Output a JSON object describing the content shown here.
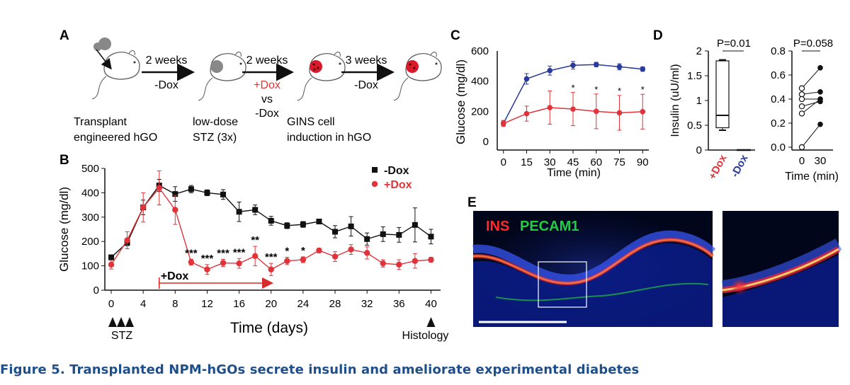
{
  "panels": {
    "A": "A",
    "B": "B",
    "C": "C",
    "D": "D",
    "E": "E"
  },
  "panelA": {
    "steps": [
      {
        "arrow_top": "2 weeks",
        "arrow_bottom": "-Dox"
      },
      {
        "arrow_top": "2 weeks",
        "arrow_mid": "+Dox",
        "arrow_vs": "vs",
        "arrow_bottom": "-Dox"
      },
      {
        "arrow_top": "3 weeks",
        "arrow_bottom": "-Dox"
      }
    ],
    "labels": [
      [
        "Transplant",
        "engineered hGO"
      ],
      [
        "low-dose",
        "STZ (3x)"
      ],
      [
        "GINS cell",
        "induction in hGO"
      ]
    ]
  },
  "colors": {
    "red": "#e0343a",
    "blue": "#2a3a9c",
    "black": "#111111",
    "caption": "#1f4f8a",
    "arrow_red": "#d62c2c"
  },
  "chart_data": [
    {
      "id": "B",
      "type": "line",
      "title": "",
      "xlabel": "Time (days)",
      "ylabel": "Glucose (mg/dl)",
      "xlim": [
        -1,
        41
      ],
      "ylim": [
        0,
        500
      ],
      "xticks": [
        0,
        4,
        8,
        12,
        16,
        20,
        24,
        28,
        32,
        36,
        40
      ],
      "yticks": [
        0,
        100,
        200,
        300,
        400,
        500
      ],
      "series": [
        {
          "name": "-Dox",
          "color": "#111111",
          "marker": "square",
          "x": [
            0,
            2,
            4,
            6,
            8,
            10,
            12,
            14,
            16,
            18,
            20,
            22,
            24,
            26,
            28,
            30,
            32,
            34,
            36,
            38,
            40
          ],
          "y": [
            135,
            195,
            340,
            430,
            395,
            415,
            400,
            393,
            322,
            330,
            285,
            265,
            270,
            282,
            240,
            262,
            210,
            230,
            227,
            268,
            220
          ],
          "err": [
            8,
            12,
            30,
            25,
            30,
            15,
            12,
            20,
            40,
            20,
            18,
            12,
            12,
            10,
            25,
            40,
            25,
            30,
            30,
            70,
            30
          ]
        },
        {
          "name": "+Dox",
          "color": "#e0343a",
          "marker": "circle",
          "x": [
            0,
            2,
            4,
            6,
            8,
            10,
            12,
            14,
            16,
            18,
            20,
            22,
            24,
            26,
            28,
            30,
            32,
            34,
            36,
            38,
            40
          ],
          "y": [
            105,
            205,
            340,
            420,
            330,
            115,
            85,
            112,
            110,
            140,
            85,
            120,
            125,
            163,
            138,
            167,
            153,
            110,
            105,
            120,
            125
          ],
          "err": [
            18,
            35,
            60,
            70,
            60,
            12,
            20,
            15,
            20,
            40,
            25,
            15,
            12,
            10,
            20,
            20,
            25,
            15,
            20,
            30,
            10
          ]
        }
      ],
      "significance": [
        {
          "x": 10,
          "label": "***"
        },
        {
          "x": 12,
          "label": "***"
        },
        {
          "x": 14,
          "label": "***"
        },
        {
          "x": 16,
          "label": "***"
        },
        {
          "x": 18,
          "label": "**"
        },
        {
          "x": 20,
          "label": "***"
        },
        {
          "x": 22,
          "label": "*"
        },
        {
          "x": 24,
          "label": "*"
        }
      ],
      "legend": [
        "-Dox",
        "+Dox"
      ],
      "annotations": {
        "dox_bar": "+Dox",
        "dox_start": 6,
        "dox_end": 20,
        "stz_label": "STZ",
        "histology_label": "Histology"
      }
    },
    {
      "id": "C",
      "type": "line",
      "xlabel": "Time (min)",
      "ylabel": "Glucose (mg/dl)",
      "xlim": [
        0,
        90
      ],
      "ylim": [
        0,
        600
      ],
      "xticks": [
        0,
        15,
        30,
        45,
        60,
        75,
        90
      ],
      "yticks": [
        0,
        200,
        400,
        600
      ],
      "series": [
        {
          "name": "-Dox",
          "color": "#2a3a9c",
          "x": [
            0,
            15,
            30,
            45,
            60,
            75,
            90
          ],
          "y": [
            120,
            415,
            470,
            505,
            510,
            495,
            480
          ],
          "err": [
            15,
            35,
            30,
            25,
            15,
            20,
            15
          ]
        },
        {
          "name": "+Dox",
          "color": "#e0343a",
          "x": [
            0,
            15,
            30,
            45,
            60,
            75,
            90
          ],
          "y": [
            120,
            185,
            225,
            215,
            200,
            190,
            198
          ],
          "err": [
            20,
            50,
            110,
            110,
            115,
            115,
            115
          ]
        }
      ],
      "significance": [
        {
          "x": 45,
          "label": "*"
        },
        {
          "x": 60,
          "label": "*"
        },
        {
          "x": 75,
          "label": "*"
        },
        {
          "x": 90,
          "label": "*"
        }
      ]
    },
    {
      "id": "D1",
      "type": "box",
      "ylabel": "Insulin (uU/ml)",
      "ylim": [
        0,
        2
      ],
      "yticks": [
        0,
        0.5,
        1,
        1.5,
        2
      ],
      "categories": [
        "+Dox",
        "-Dox"
      ],
      "boxes": [
        {
          "name": "+Dox",
          "min": 0.4,
          "q1": 0.45,
          "median": 0.7,
          "q3": 1.8,
          "max": 1.82,
          "color": "#e0343a"
        },
        {
          "name": "-Dox",
          "min": 0,
          "q1": 0,
          "median": 0,
          "q3": 0,
          "max": 0,
          "color": "#2a3a9c"
        }
      ],
      "pvalue": "P=0.01"
    },
    {
      "id": "D2",
      "type": "scatter",
      "xlabel": "Time (min)",
      "ylim": [
        0,
        0.8
      ],
      "yticks": [
        0.0,
        0.2,
        0.4,
        0.6,
        0.8
      ],
      "xticks": [
        0,
        30
      ],
      "pairs": [
        [
          0.49,
          0.66
        ],
        [
          0.44,
          0.46
        ],
        [
          0.4,
          0.4
        ],
        [
          0.34,
          0.38
        ],
        [
          0.28,
          0.4
        ],
        [
          0.0,
          0.19
        ]
      ],
      "pvalue": "P=0.058"
    }
  ],
  "panelE": {
    "label_ins": "INS",
    "label_pecam": "PECAM1"
  },
  "caption": "Figure 5.  Transplanted NPM-hGOs secrete insulin and ameliorate experimental diabetes"
}
